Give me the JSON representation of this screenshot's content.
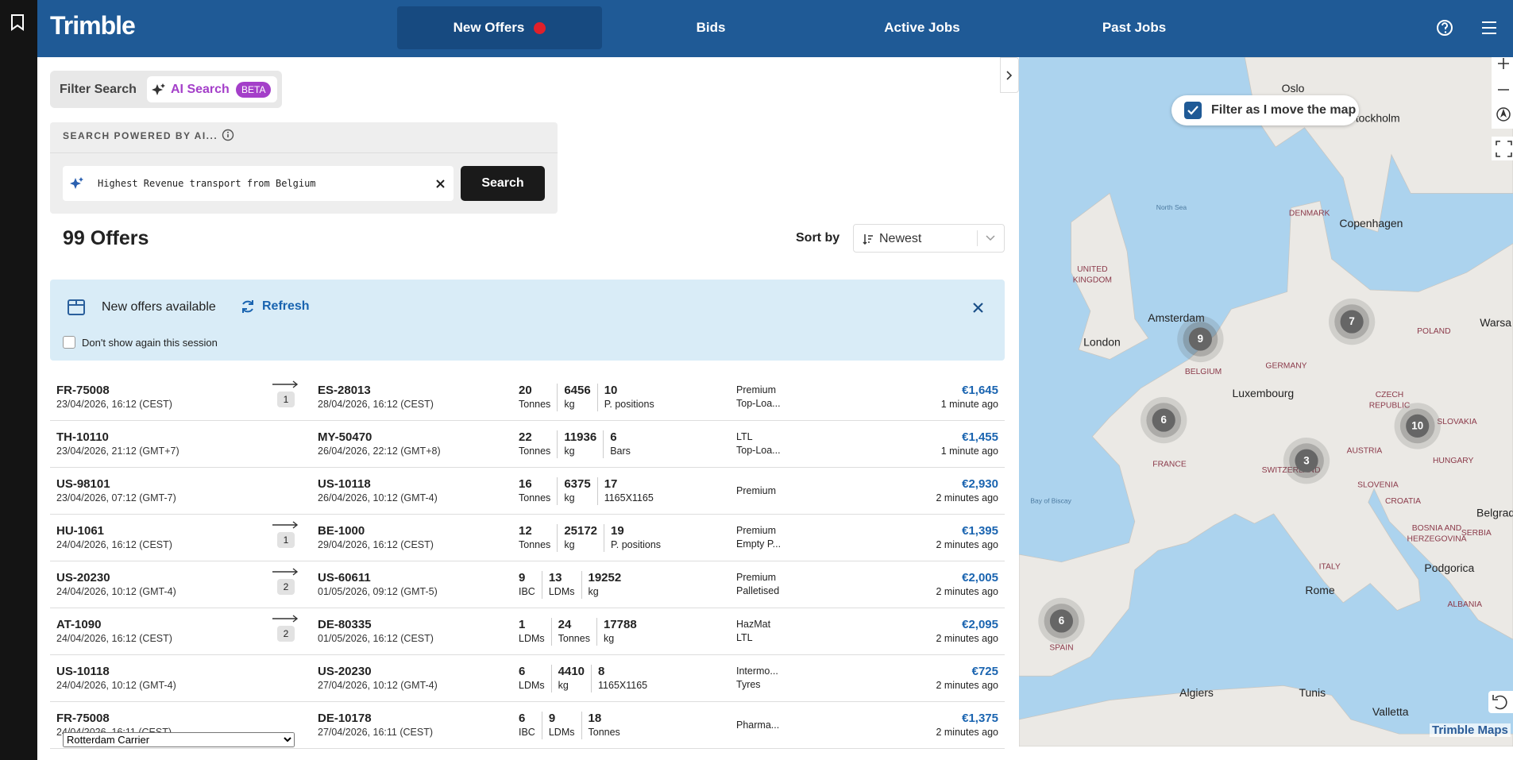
{
  "header": {
    "logo": "Trimble",
    "nav": [
      "New Offers",
      "Bids",
      "Active Jobs",
      "Past Jobs"
    ]
  },
  "filter": {
    "tabs": [
      "Filter Search",
      "AI Search"
    ],
    "badge": "BETA",
    "panel_title": "SEARCH POWERED BY AI...",
    "query": "Highest Revenue transport from Belgium",
    "button": "Search"
  },
  "offers": {
    "count": "99 Offers",
    "sort_label": "Sort by",
    "sort_value": "Newest"
  },
  "banner": {
    "text": "New offers available",
    "refresh": "Refresh",
    "checkbox": "Don't show again this session"
  },
  "rows": [
    {
      "origin": "FR-75008",
      "origin_date": "23/04/2026, 16:12 (CEST)",
      "stops": "1",
      "dest": "ES-28013",
      "dest_date": "28/04/2026, 16:12 (CEST)",
      "measures": [
        [
          "20",
          "Tonnes"
        ],
        [
          "6456",
          "kg"
        ],
        [
          "10",
          "P. positions"
        ]
      ],
      "tags": [
        "Premium",
        "Top-Loa..."
      ],
      "price": "€1,645",
      "time": "1 minute ago"
    },
    {
      "origin": "TH-10110",
      "origin_date": "23/04/2026, 21:12 (GMT+7)",
      "stops": null,
      "dest": "MY-50470",
      "dest_date": "26/04/2026, 22:12 (GMT+8)",
      "measures": [
        [
          "22",
          "Tonnes"
        ],
        [
          "11936",
          "kg"
        ],
        [
          "6",
          "Bars"
        ]
      ],
      "tags": [
        "LTL",
        "Top-Loa..."
      ],
      "price": "€1,455",
      "time": "1 minute ago"
    },
    {
      "origin": "US-98101",
      "origin_date": "23/04/2026, 07:12 (GMT-7)",
      "stops": null,
      "dest": "US-10118",
      "dest_date": "26/04/2026, 10:12 (GMT-4)",
      "measures": [
        [
          "16",
          "Tonnes"
        ],
        [
          "6375",
          "kg"
        ],
        [
          "17",
          "1165X1165"
        ]
      ],
      "tags": [
        "Premium"
      ],
      "price": "€2,930",
      "time": "2 minutes ago"
    },
    {
      "origin": "HU-1061",
      "origin_date": "24/04/2026, 16:12 (CEST)",
      "stops": "1",
      "dest": "BE-1000",
      "dest_date": "29/04/2026, 16:12 (CEST)",
      "measures": [
        [
          "12",
          "Tonnes"
        ],
        [
          "25172",
          "kg"
        ],
        [
          "19",
          "P. positions"
        ]
      ],
      "tags": [
        "Premium",
        "Empty P..."
      ],
      "price": "€1,395",
      "time": "2 minutes ago"
    },
    {
      "origin": "US-20230",
      "origin_date": "24/04/2026, 10:12 (GMT-4)",
      "stops": "2",
      "dest": "US-60611",
      "dest_date": "01/05/2026, 09:12 (GMT-5)",
      "measures": [
        [
          "9",
          "IBC"
        ],
        [
          "13",
          "LDMs"
        ],
        [
          "19252",
          "kg"
        ]
      ],
      "tags": [
        "Premium",
        "Palletised"
      ],
      "price": "€2,005",
      "time": "2 minutes ago"
    },
    {
      "origin": "AT-1090",
      "origin_date": "24/04/2026, 16:12 (CEST)",
      "stops": "2",
      "dest": "DE-80335",
      "dest_date": "01/05/2026, 16:12 (CEST)",
      "measures": [
        [
          "1",
          "LDMs"
        ],
        [
          "24",
          "Tonnes"
        ],
        [
          "17788",
          "kg"
        ]
      ],
      "tags": [
        "HazMat",
        "LTL"
      ],
      "price": "€2,095",
      "time": "2 minutes ago"
    },
    {
      "origin": "US-10118",
      "origin_date": "24/04/2026, 10:12 (GMT-4)",
      "stops": null,
      "dest": "US-20230",
      "dest_date": "27/04/2026, 10:12 (GMT-4)",
      "measures": [
        [
          "6",
          "LDMs"
        ],
        [
          "4410",
          "kg"
        ],
        [
          "8",
          "1165X1165"
        ]
      ],
      "tags": [
        "Intermo...",
        "Tyres"
      ],
      "price": "€725",
      "time": "2 minutes ago"
    },
    {
      "origin": "FR-75008",
      "origin_date": "24/04/2026, 16:11 (CEST)",
      "stops": null,
      "dest": "DE-10178",
      "dest_date": "27/04/2026, 16:11 (CEST)",
      "measures": [
        [
          "6",
          "IBC"
        ],
        [
          "9",
          "LDMs"
        ],
        [
          "18",
          "Tonnes"
        ]
      ],
      "tags": [
        "Pharma..."
      ],
      "price": "€1,375",
      "time": "2 minutes ago"
    }
  ],
  "carrier_select": "Rotterdam Carrier",
  "map": {
    "filter_toggle": "Filter as I move the map",
    "attribution": "Trimble Maps",
    "labels": [
      "Oslo",
      "Stockholm",
      "North Sea",
      "DENMARK",
      "Copenhagen",
      "UNITED",
      "KINGDOM",
      "Amsterdam",
      "London",
      "POLAND",
      "Warsa",
      "BELGIUM",
      "GERMANY",
      "Luxembourg",
      "CZECH",
      "REPUBLIC",
      "FRANCE",
      "SWITZERLAND",
      "AUSTRIA",
      "SLOVAKIA",
      "HUNGARY",
      "SLOVENIA",
      "CROATIA",
      "Bay of Biscay",
      "Belgrad",
      "BOSNIA AND",
      "HERZEGOVINA",
      "SERBIA",
      "Podgorica",
      "ITALY",
      "Rome",
      "ALBANIA",
      "SPAIN",
      "Algiers",
      "Tunis",
      "Valletta"
    ],
    "clusters": [
      "9",
      "7",
      "6",
      "10",
      "3",
      "6"
    ]
  }
}
